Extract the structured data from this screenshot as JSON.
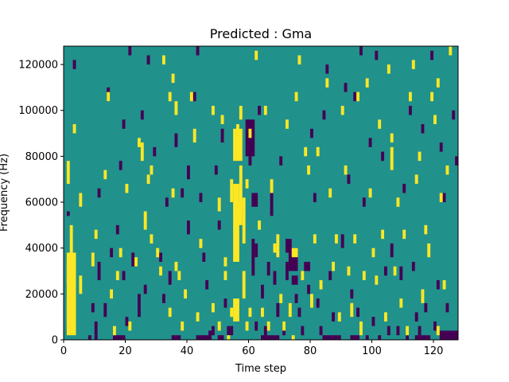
{
  "chart_data": {
    "type": "heatmap",
    "title": "Predicted : Gma",
    "xlabel": "Time step",
    "ylabel": "Frequency (Hz)",
    "xlim": [
      0,
      128
    ],
    "ylim": [
      0,
      128000
    ],
    "x_ticks": [
      0,
      20,
      40,
      60,
      80,
      100,
      120
    ],
    "y_ticks": [
      0,
      20000,
      40000,
      60000,
      80000,
      100000,
      120000
    ],
    "grid": false,
    "legend": "none",
    "colormap": "viridis",
    "colors": {
      "background": "#21918c",
      "high": "#fde725",
      "low": "#440154"
    },
    "yellow_rects": [
      [
        1,
        4,
        2000,
        36000
      ],
      [
        1,
        3,
        24000,
        10000
      ],
      [
        1,
        2,
        68000,
        10000
      ],
      [
        2,
        3,
        28000,
        18000
      ],
      [
        1,
        2,
        6000,
        12000
      ],
      [
        3,
        4,
        90000,
        4000
      ],
      [
        2,
        3,
        46000,
        4000
      ],
      [
        5,
        6,
        58000,
        6000
      ],
      [
        5,
        6,
        20000,
        8000
      ],
      [
        9,
        10,
        32000,
        6000
      ],
      [
        10,
        11,
        44000,
        4000
      ],
      [
        13,
        14,
        70000,
        4000
      ],
      [
        14,
        15,
        104000,
        4000
      ],
      [
        15,
        16,
        18000,
        4000
      ],
      [
        16,
        17,
        2000,
        4000
      ],
      [
        17,
        18,
        26000,
        4000
      ],
      [
        18,
        19,
        36000,
        4000
      ],
      [
        20,
        21,
        64000,
        4000
      ],
      [
        21,
        22,
        4000,
        4000
      ],
      [
        23,
        24,
        32000,
        4000
      ],
      [
        24,
        25,
        84000,
        4000
      ],
      [
        25,
        26,
        78000,
        8000
      ],
      [
        26,
        27,
        48000,
        8000
      ],
      [
        27,
        28,
        68000,
        4000
      ],
      [
        28,
        29,
        72000,
        4000
      ],
      [
        28,
        29,
        42000,
        4000
      ],
      [
        30,
        31,
        36000,
        4000
      ],
      [
        31,
        32,
        28000,
        4000
      ],
      [
        32,
        33,
        120000,
        4000
      ],
      [
        34,
        35,
        104000,
        4000
      ],
      [
        35,
        36,
        112000,
        4000
      ],
      [
        34,
        35,
        10000,
        4000
      ],
      [
        36,
        37,
        98000,
        6000
      ],
      [
        35,
        36,
        62000,
        4000
      ],
      [
        36,
        37,
        30000,
        4000
      ],
      [
        37,
        38,
        26000,
        4000
      ],
      [
        38,
        39,
        4000,
        4000
      ],
      [
        39,
        40,
        18000,
        4000
      ],
      [
        41,
        42,
        104000,
        4000
      ],
      [
        42,
        43,
        86000,
        6000
      ],
      [
        43,
        44,
        8000,
        4000
      ],
      [
        44,
        45,
        40000,
        4000
      ],
      [
        48,
        49,
        98000,
        4000
      ],
      [
        48,
        49,
        12000,
        4000
      ],
      [
        50,
        51,
        56000,
        6000
      ],
      [
        50,
        51,
        4000,
        4000
      ],
      [
        51,
        52,
        94000,
        4000
      ],
      [
        52,
        53,
        32000,
        4000
      ],
      [
        52,
        53,
        26000,
        4000
      ],
      [
        53,
        54,
        0,
        2000
      ],
      [
        54,
        55,
        60000,
        10000
      ],
      [
        54,
        55,
        10000,
        4000
      ],
      [
        55,
        57,
        34000,
        34000
      ],
      [
        55,
        57,
        8000,
        10000
      ],
      [
        56,
        58,
        50000,
        10000
      ],
      [
        55,
        58,
        78000,
        14000
      ],
      [
        56,
        57,
        90000,
        4000
      ],
      [
        57,
        58,
        56000,
        20000
      ],
      [
        57,
        58,
        96000,
        6000
      ],
      [
        58,
        59,
        42000,
        20000
      ],
      [
        58,
        59,
        18000,
        12000
      ],
      [
        59,
        60,
        66000,
        4000
      ],
      [
        59,
        60,
        4000,
        4000
      ],
      [
        60,
        61,
        10000,
        4000
      ],
      [
        60,
        61,
        88000,
        4000
      ],
      [
        62,
        63,
        122000,
        4000
      ],
      [
        63,
        64,
        48000,
        4000
      ],
      [
        64,
        65,
        10000,
        4000
      ],
      [
        65,
        66,
        98000,
        4000
      ],
      [
        66,
        67,
        4000,
        4000
      ],
      [
        67,
        68,
        64000,
        6000
      ],
      [
        68,
        69,
        38000,
        4000
      ],
      [
        69,
        70,
        36000,
        10000
      ],
      [
        70,
        71,
        16000,
        4000
      ],
      [
        71,
        72,
        4000,
        4000
      ],
      [
        72,
        73,
        92000,
        4000
      ],
      [
        73,
        74,
        10000,
        6000
      ],
      [
        74,
        75,
        0,
        2000
      ],
      [
        74,
        76,
        36000,
        4000
      ],
      [
        75,
        76,
        104000,
        4000
      ],
      [
        76,
        77,
        120000,
        4000
      ],
      [
        77,
        78,
        26000,
        4000
      ],
      [
        78,
        79,
        80000,
        4000
      ],
      [
        79,
        80,
        72000,
        4000
      ],
      [
        80,
        81,
        14000,
        6000
      ],
      [
        81,
        82,
        42000,
        4000
      ],
      [
        82,
        83,
        80000,
        4000
      ],
      [
        83,
        84,
        22000,
        4000
      ],
      [
        85,
        86,
        110000,
        4000
      ],
      [
        86,
        87,
        62000,
        4000
      ],
      [
        87,
        88,
        30000,
        4000
      ],
      [
        88,
        89,
        42000,
        4000
      ],
      [
        89,
        90,
        8000,
        4000
      ],
      [
        90,
        91,
        98000,
        4000
      ],
      [
        91,
        92,
        72000,
        4000
      ],
      [
        92,
        93,
        28000,
        4000
      ],
      [
        93,
        94,
        10000,
        6000
      ],
      [
        94,
        95,
        42000,
        4000
      ],
      [
        95,
        96,
        104000,
        4000
      ],
      [
        96,
        97,
        2000,
        6000
      ],
      [
        97,
        98,
        26000,
        4000
      ],
      [
        98,
        99,
        110000,
        4000
      ],
      [
        99,
        100,
        62000,
        4000
      ],
      [
        100,
        101,
        36000,
        4000
      ],
      [
        101,
        102,
        24000,
        4000
      ],
      [
        102,
        103,
        92000,
        4000
      ],
      [
        103,
        104,
        44000,
        4000
      ],
      [
        104,
        105,
        8000,
        4000
      ],
      [
        105,
        106,
        116000,
        4000
      ],
      [
        106,
        107,
        86000,
        4000
      ],
      [
        106,
        107,
        74000,
        10000
      ],
      [
        107,
        108,
        28000,
        4000
      ],
      [
        108,
        109,
        58000,
        4000
      ],
      [
        109,
        110,
        14000,
        4000
      ],
      [
        110,
        111,
        44000,
        4000
      ],
      [
        111,
        112,
        2000,
        4000
      ],
      [
        112,
        113,
        104000,
        4000
      ],
      [
        113,
        114,
        118000,
        4000
      ],
      [
        114,
        115,
        68000,
        4000
      ],
      [
        115,
        116,
        78000,
        4000
      ],
      [
        116,
        117,
        16000,
        6000
      ],
      [
        117,
        118,
        46000,
        4000
      ],
      [
        118,
        119,
        36000,
        6000
      ],
      [
        119,
        120,
        104000,
        4000
      ],
      [
        120,
        121,
        94000,
        4000
      ],
      [
        121,
        122,
        110000,
        4000
      ],
      [
        121,
        122,
        2000,
        4000
      ],
      [
        122,
        123,
        60000,
        4000
      ],
      [
        123,
        124,
        22000,
        4000
      ],
      [
        124,
        125,
        72000,
        4000
      ],
      [
        125,
        126,
        124000,
        4000
      ]
    ],
    "purple_rects": [
      [
        1,
        2,
        54000,
        2000
      ],
      [
        3,
        4,
        118000,
        4000
      ],
      [
        9,
        10,
        12000,
        4000
      ],
      [
        10,
        11,
        2000,
        6000
      ],
      [
        11,
        12,
        62000,
        4000
      ],
      [
        11,
        12,
        26000,
        8000
      ],
      [
        13,
        14,
        10000,
        6000
      ],
      [
        14,
        15,
        104000,
        6000
      ],
      [
        15,
        16,
        36000,
        4000
      ],
      [
        17,
        18,
        46000,
        4000
      ],
      [
        18,
        19,
        74000,
        4000
      ],
      [
        19,
        20,
        92000,
        4000
      ],
      [
        19,
        20,
        26000,
        4000
      ],
      [
        20,
        21,
        6000,
        4000
      ],
      [
        21,
        22,
        124000,
        4000
      ],
      [
        22,
        23,
        32000,
        6000
      ],
      [
        24,
        25,
        10000,
        10000
      ],
      [
        25,
        26,
        96000,
        4000
      ],
      [
        26,
        27,
        20000,
        4000
      ],
      [
        27,
        28,
        120000,
        4000
      ],
      [
        29,
        30,
        80000,
        4000
      ],
      [
        31,
        32,
        34000,
        4000
      ],
      [
        32,
        33,
        16000,
        4000
      ],
      [
        33,
        34,
        58000,
        4000
      ],
      [
        34,
        35,
        24000,
        6000
      ],
      [
        36,
        37,
        84000,
        6000
      ],
      [
        38,
        39,
        62000,
        4000
      ],
      [
        40,
        41,
        70000,
        6000
      ],
      [
        40,
        41,
        46000,
        6000
      ],
      [
        42,
        43,
        104000,
        4000
      ],
      [
        43,
        44,
        124000,
        4000
      ],
      [
        44,
        45,
        60000,
        4000
      ],
      [
        45,
        46,
        34000,
        4000
      ],
      [
        46,
        47,
        22000,
        4000
      ],
      [
        47,
        48,
        0,
        4000
      ],
      [
        48,
        49,
        2000,
        4000
      ],
      [
        49,
        50,
        72000,
        4000
      ],
      [
        50,
        51,
        48000,
        4000
      ],
      [
        51,
        52,
        86000,
        6000
      ],
      [
        52,
        53,
        14000,
        4000
      ],
      [
        53,
        54,
        2000,
        4000
      ],
      [
        54,
        55,
        2000,
        4000
      ],
      [
        59,
        62,
        80000,
        16000
      ],
      [
        60,
        61,
        76000,
        4000
      ],
      [
        61,
        63,
        58000,
        6000
      ],
      [
        61,
        62,
        28000,
        16000
      ],
      [
        62,
        63,
        36000,
        6000
      ],
      [
        62,
        63,
        4000,
        4000
      ],
      [
        63,
        64,
        98000,
        4000
      ],
      [
        64,
        65,
        18000,
        6000
      ],
      [
        65,
        66,
        2000,
        4000
      ],
      [
        66,
        67,
        28000,
        6000
      ],
      [
        67,
        68,
        54000,
        10000
      ],
      [
        68,
        69,
        24000,
        6000
      ],
      [
        69,
        70,
        10000,
        6000
      ],
      [
        70,
        71,
        76000,
        4000
      ],
      [
        71,
        72,
        2000,
        6000
      ],
      [
        72,
        73,
        26000,
        8000
      ],
      [
        72,
        74,
        38000,
        6000
      ],
      [
        73,
        76,
        30000,
        10000
      ],
      [
        74,
        76,
        24000,
        4000
      ],
      [
        75,
        76,
        16000,
        4000
      ],
      [
        76,
        77,
        10000,
        4000
      ],
      [
        77,
        78,
        2000,
        4000
      ],
      [
        78,
        80,
        30000,
        4000
      ],
      [
        79,
        80,
        20000,
        4000
      ],
      [
        80,
        81,
        88000,
        4000
      ],
      [
        81,
        82,
        60000,
        4000
      ],
      [
        82,
        83,
        14000,
        4000
      ],
      [
        83,
        84,
        2000,
        4000
      ],
      [
        84,
        85,
        96000,
        4000
      ],
      [
        85,
        86,
        116000,
        4000
      ],
      [
        86,
        87,
        26000,
        4000
      ],
      [
        87,
        88,
        8000,
        4000
      ],
      [
        89,
        90,
        0,
        2000
      ],
      [
        90,
        91,
        40000,
        6000
      ],
      [
        91,
        92,
        108000,
        4000
      ],
      [
        92,
        93,
        68000,
        4000
      ],
      [
        93,
        94,
        18000,
        4000
      ],
      [
        94,
        95,
        104000,
        4000
      ],
      [
        95,
        96,
        10000,
        4000
      ],
      [
        96,
        97,
        124000,
        4000
      ],
      [
        97,
        98,
        58000,
        4000
      ],
      [
        98,
        99,
        0,
        2000
      ],
      [
        99,
        100,
        84000,
        4000
      ],
      [
        100,
        101,
        6000,
        4000
      ],
      [
        101,
        102,
        122000,
        4000
      ],
      [
        102,
        103,
        0,
        2000
      ],
      [
        103,
        104,
        78000,
        4000
      ],
      [
        104,
        105,
        28000,
        4000
      ],
      [
        105,
        106,
        2000,
        4000
      ],
      [
        106,
        107,
        36000,
        6000
      ],
      [
        108,
        109,
        2000,
        4000
      ],
      [
        109,
        110,
        26000,
        6000
      ],
      [
        110,
        111,
        64000,
        4000
      ],
      [
        111,
        112,
        0,
        2000
      ],
      [
        112,
        113,
        98000,
        4000
      ],
      [
        113,
        114,
        30000,
        4000
      ],
      [
        114,
        115,
        8000,
        4000
      ],
      [
        115,
        116,
        2000,
        4000
      ],
      [
        116,
        117,
        90000,
        4000
      ],
      [
        117,
        118,
        12000,
        4000
      ],
      [
        118,
        119,
        0,
        2000
      ],
      [
        119,
        120,
        122000,
        4000
      ],
      [
        120,
        121,
        4000,
        4000
      ],
      [
        121,
        122,
        22000,
        4000
      ],
      [
        122,
        123,
        82000,
        4000
      ],
      [
        123,
        124,
        60000,
        4000
      ],
      [
        124,
        125,
        12000,
        4000
      ],
      [
        125,
        126,
        0,
        2000
      ],
      [
        126,
        127,
        96000,
        4000
      ],
      [
        127,
        128,
        76000,
        4000
      ],
      [
        127,
        128,
        0,
        2000
      ],
      [
        122,
        128,
        0,
        4000
      ],
      [
        114,
        118,
        0,
        2000
      ],
      [
        93,
        96,
        0,
        2000
      ],
      [
        84,
        89,
        0,
        2000
      ],
      [
        64,
        70,
        0,
        2000
      ],
      [
        50,
        52,
        0,
        2000
      ],
      [
        43,
        48,
        0,
        2000
      ],
      [
        35,
        38,
        0,
        2000
      ],
      [
        16,
        20,
        0,
        2000
      ],
      [
        10,
        11,
        0,
        2000
      ],
      [
        8,
        9,
        0,
        2000
      ]
    ]
  }
}
